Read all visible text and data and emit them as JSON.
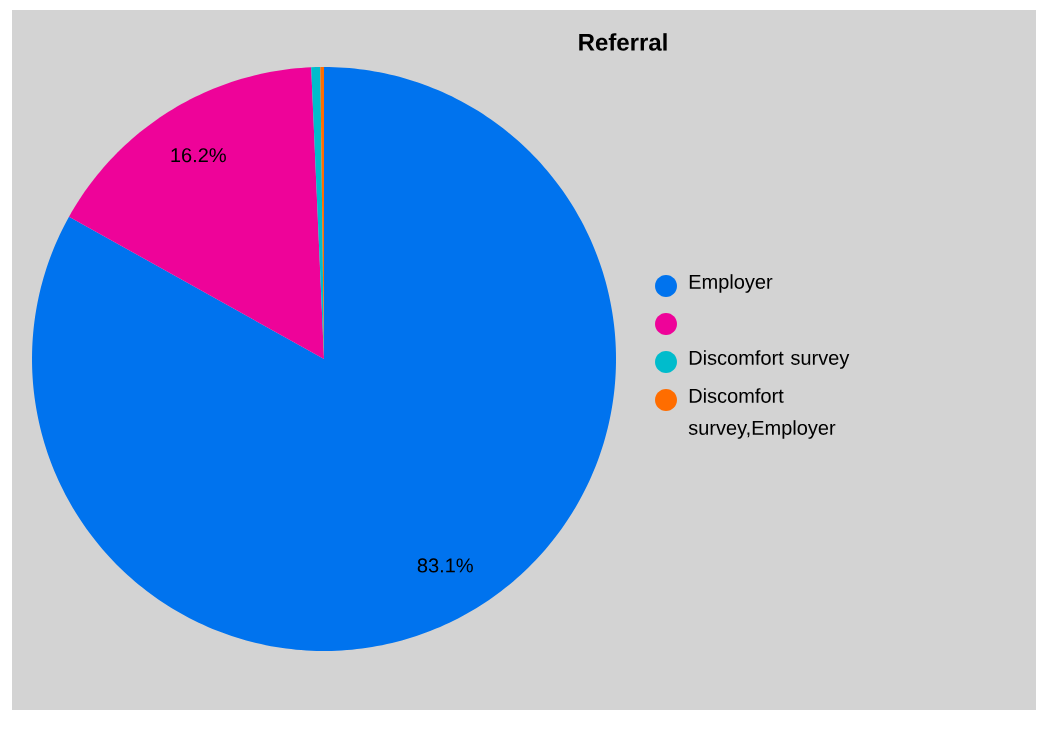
{
  "chart_data": {
    "type": "pie",
    "title": "Referral",
    "categories": [
      "Employer",
      null,
      "Discomfort survey",
      "Discomfort survey,Employer"
    ],
    "values": [
      83.1,
      16.2,
      0.5,
      0.2
    ],
    "colors": [
      "#0073ee",
      "#ee0399",
      "#00bccc",
      "#ff6d00"
    ],
    "value_labels": [
      "83.1%",
      "16.2%",
      null,
      null
    ],
    "legend": "right"
  }
}
